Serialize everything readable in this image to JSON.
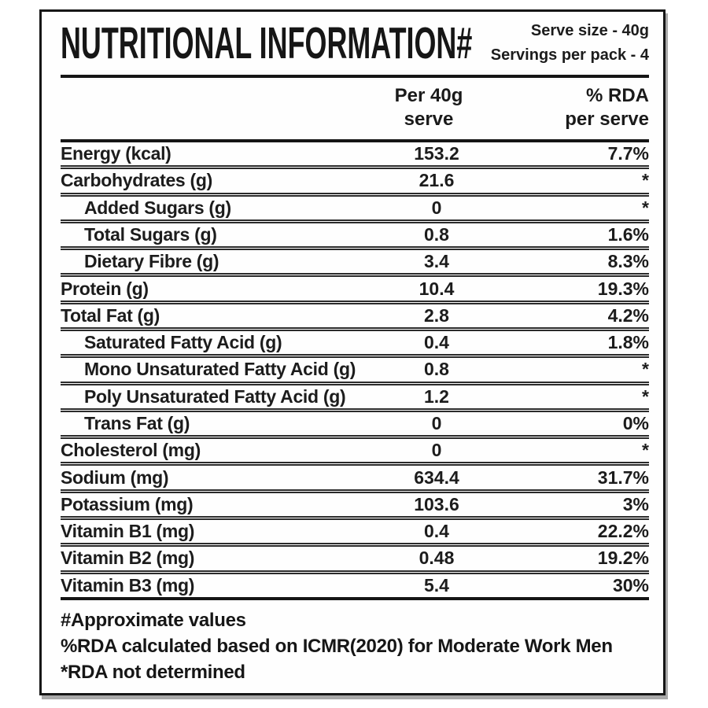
{
  "label": {
    "header": {
      "title": "NUTRITIONAL INFORMATION#",
      "serve_size": "Serve size - 40g",
      "servings_per_pack": "Servings per pack - 4"
    },
    "columns": {
      "amount": "Per 40g\nserve",
      "rda": "% RDA\nper serve"
    },
    "table": {
      "rows": [
        {
          "name": "Energy (kcal)",
          "amount": "153.2",
          "rda": "7.7%",
          "indent": false
        },
        {
          "name": "Carbohydrates (g)",
          "amount": "21.6",
          "rda": "*",
          "indent": false
        },
        {
          "name": "Added Sugars (g)",
          "amount": "0",
          "rda": "*",
          "indent": true
        },
        {
          "name": "Total Sugars (g)",
          "amount": "0.8",
          "rda": "1.6%",
          "indent": true
        },
        {
          "name": "Dietary Fibre (g)",
          "amount": "3.4",
          "rda": "8.3%",
          "indent": true
        },
        {
          "name": "Protein (g)",
          "amount": "10.4",
          "rda": "19.3%",
          "indent": false
        },
        {
          "name": "Total Fat (g)",
          "amount": "2.8",
          "rda": "4.2%",
          "indent": false
        },
        {
          "name": "Saturated Fatty Acid (g)",
          "amount": "0.4",
          "rda": "1.8%",
          "indent": true
        },
        {
          "name": "Mono Unsaturated Fatty Acid (g)",
          "amount": "0.8",
          "rda": "*",
          "indent": true
        },
        {
          "name": "Poly Unsaturated Fatty Acid (g)",
          "amount": "1.2",
          "rda": "*",
          "indent": true
        },
        {
          "name": "Trans Fat (g)",
          "amount": "0",
          "rda": "0%",
          "indent": true
        },
        {
          "name": "Cholesterol (mg)",
          "amount": "0",
          "rda": "*",
          "indent": false
        },
        {
          "name": "Sodium (mg)",
          "amount": "634.4",
          "rda": "31.7%",
          "indent": false
        },
        {
          "name": "Potassium (mg)",
          "amount": "103.6",
          "rda": "3%",
          "indent": false
        },
        {
          "name": "Vitamin B1 (mg)",
          "amount": "0.4",
          "rda": "22.2%",
          "indent": false
        },
        {
          "name": "Vitamin B2 (mg)",
          "amount": "0.48",
          "rda": "19.2%",
          "indent": false
        },
        {
          "name": "Vitamin B3 (mg)",
          "amount": "5.4",
          "rda": "30%",
          "indent": false
        }
      ]
    },
    "footnotes": [
      "#Approximate values",
      "%RDA calculated based on ICMR(2020) for Moderate Work Men",
      "*RDA not determined"
    ],
    "colors": {
      "border": "#161616",
      "text": "#1a1a1a",
      "shadow": "#a9a9a9",
      "background": "#fefefe"
    }
  }
}
